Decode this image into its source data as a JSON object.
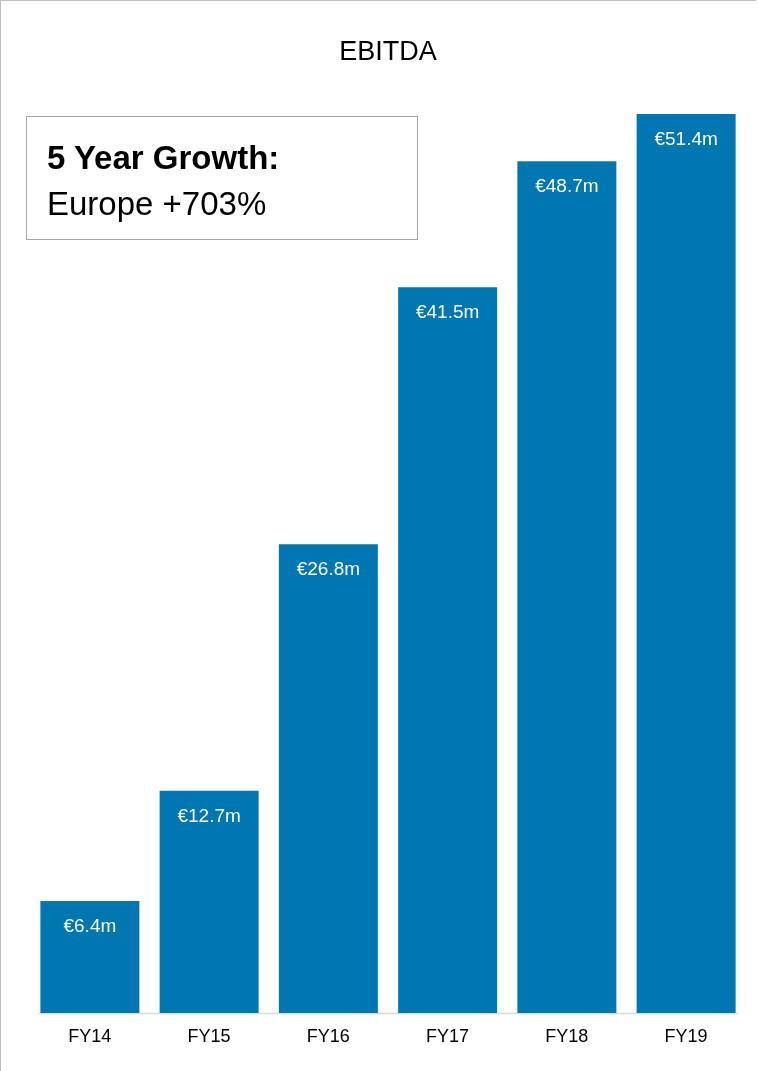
{
  "chart_data": {
    "type": "bar",
    "title": "EBITDA",
    "categories": [
      "FY14",
      "FY15",
      "FY16",
      "FY17",
      "FY18",
      "FY19"
    ],
    "values": [
      6.4,
      12.7,
      26.8,
      41.5,
      48.7,
      51.4
    ],
    "value_labels": [
      "€6.4m",
      "€12.7m",
      "€26.8m",
      "€41.5m",
      "€48.7m",
      "€51.4m"
    ],
    "color": "#0077b0",
    "annotations": [
      "5 Year Growth:",
      "Europe +703%"
    ]
  }
}
